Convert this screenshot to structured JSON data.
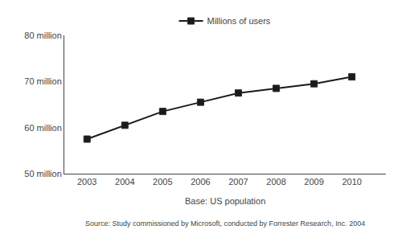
{
  "chart_data": {
    "type": "line",
    "x": [
      2003,
      2004,
      2005,
      2006,
      2007,
      2008,
      2009,
      2010
    ],
    "series": [
      {
        "name": "Millions of users",
        "color": "#1a1a1a",
        "marker": "square",
        "values": [
          57.5,
          60.5,
          63.5,
          65.5,
          67.5,
          68.5,
          69.5,
          71.0
        ]
      }
    ],
    "xlim": [
      2002.4,
      2010.9
    ],
    "xticks": [
      2003,
      2004,
      2005,
      2006,
      2007,
      2008,
      2009,
      2010
    ],
    "ylim": [
      50,
      80
    ],
    "yticks": [
      {
        "value": 50,
        "label": "50 million"
      },
      {
        "value": 60,
        "label": "60 million"
      },
      {
        "value": 70,
        "label": "70 million"
      },
      {
        "value": 80,
        "label": "80 million"
      }
    ],
    "annotations": [
      "Base: US population",
      "Source: Study commissioned by Microsoft, conducted by Forrester Research, Inc. 2004"
    ],
    "grid": false,
    "legend": "top"
  }
}
